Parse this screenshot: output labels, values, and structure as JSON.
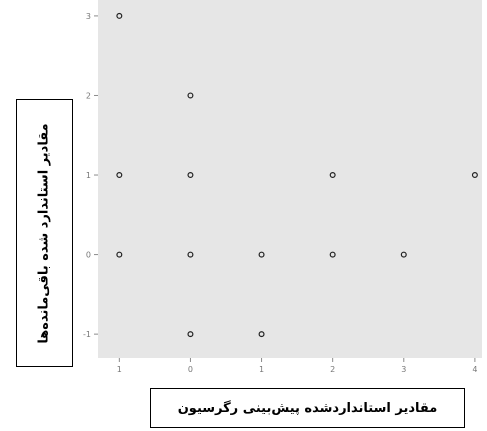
{
  "chart_data": {
    "type": "scatter",
    "title": "",
    "xlabel": "مقادیر استانداردشده پیش‌بینی رگرسیون",
    "ylabel": "مقادیر استاندارد شده باقی‌مانده‌ها",
    "xlim": [
      -0.3,
      5.1
    ],
    "ylim": [
      -1.3,
      3.2
    ],
    "xticks": [
      0,
      1,
      2,
      3,
      4,
      5
    ],
    "yticks": [
      -1,
      0,
      1,
      2,
      3
    ],
    "xtick_labels": [
      "1",
      "0",
      "1",
      "2",
      "3",
      "4"
    ],
    "ytick_labels": [
      "-1",
      "0",
      "1",
      "2",
      "3"
    ],
    "grid": false,
    "points": [
      {
        "x": 0,
        "y": 3
      },
      {
        "x": 1,
        "y": 2
      },
      {
        "x": 0,
        "y": 1
      },
      {
        "x": 1,
        "y": 1
      },
      {
        "x": 3,
        "y": 1
      },
      {
        "x": 5,
        "y": 1
      },
      {
        "x": 0,
        "y": 0
      },
      {
        "x": 1,
        "y": 0
      },
      {
        "x": 2,
        "y": 0
      },
      {
        "x": 3,
        "y": 0
      },
      {
        "x": 4,
        "y": 0
      },
      {
        "x": 1,
        "y": -1
      },
      {
        "x": 2,
        "y": -1
      }
    ],
    "colors": {
      "plot_bg": "#e6e6e6",
      "marker": "#222222",
      "axis": "#8a8a8a"
    }
  }
}
